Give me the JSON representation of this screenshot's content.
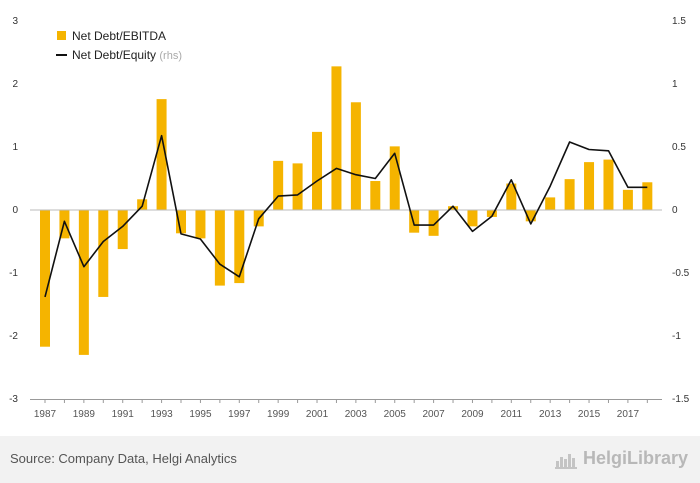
{
  "chart_data": {
    "type": "bar",
    "title": "",
    "xlabel": "",
    "ylabel": "",
    "x_tick_labels": [
      "1987",
      "1989",
      "1991",
      "1993",
      "1995",
      "1997",
      "1999",
      "2001",
      "2003",
      "2005",
      "2007",
      "2009",
      "2011",
      "2013",
      "2015",
      "2017"
    ],
    "x": [
      1987,
      1988,
      1989,
      1990,
      1991,
      1992,
      1993,
      1994,
      1995,
      1996,
      1997,
      1998,
      1999,
      2000,
      2001,
      2002,
      2003,
      2004,
      2005,
      2006,
      2007,
      2008,
      2009,
      2010,
      2011,
      2012,
      2013,
      2014,
      2015,
      2016,
      2017,
      2018
    ],
    "y_left": {
      "lim": [
        -3,
        3
      ],
      "ticks": [
        "3",
        "2",
        "1",
        "0",
        "-1",
        "-2",
        "-3"
      ]
    },
    "y_right": {
      "lim": [
        -1.5,
        1.5
      ],
      "ticks": [
        "1.5",
        "1",
        "0.5",
        "0",
        "-0.5",
        "-1",
        "-1.5"
      ]
    },
    "series": [
      {
        "name": "Net Debt/EBITDA",
        "type": "bar",
        "axis": "left",
        "color": "#f5b400",
        "values": [
          -2.17,
          -0.45,
          -2.3,
          -1.38,
          -0.62,
          0.17,
          1.76,
          -0.37,
          -0.45,
          -1.2,
          -1.16,
          -0.26,
          0.78,
          0.74,
          1.24,
          2.28,
          1.71,
          0.46,
          1.01,
          -0.36,
          -0.41,
          0.06,
          -0.26,
          -0.11,
          0.42,
          -0.18,
          0.2,
          0.49,
          0.76,
          0.8,
          0.32,
          0.44
        ]
      },
      {
        "name": "Net Debt/Equity",
        "name_suffix": "(rhs)",
        "type": "line",
        "axis": "right",
        "color": "#111111",
        "values": [
          -0.69,
          -0.09,
          -0.45,
          -0.25,
          -0.13,
          0.03,
          0.59,
          -0.19,
          -0.23,
          -0.43,
          -0.53,
          -0.07,
          0.11,
          0.12,
          0.23,
          0.33,
          0.28,
          0.25,
          0.45,
          -0.12,
          -0.12,
          0.03,
          -0.17,
          -0.05,
          0.24,
          -0.11,
          0.19,
          0.54,
          0.48,
          0.47,
          0.18,
          0.18
        ]
      }
    ],
    "legend": "top-left",
    "grid": false
  },
  "footer": {
    "source": "Source: Company Data, Helgi Analytics",
    "brand": "HelgiLibrary"
  },
  "brand_icon": "helgi-logo-icon"
}
